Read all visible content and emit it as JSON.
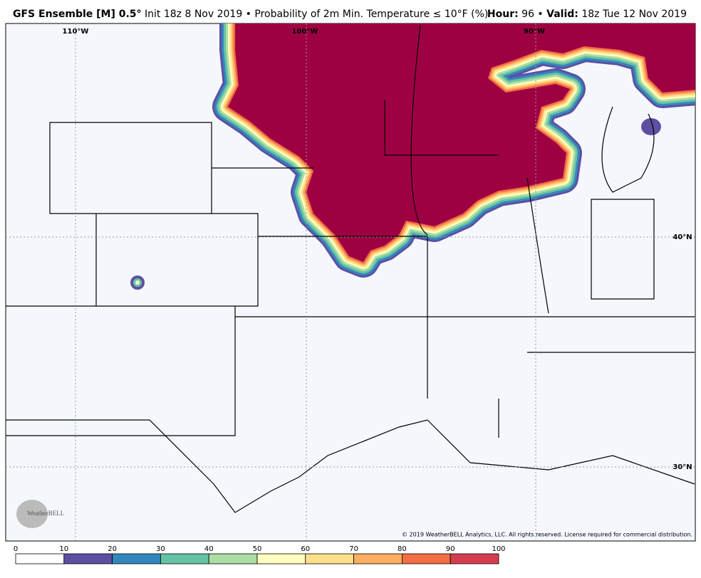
{
  "header": {
    "title_bold": "GFS Ensemble [M] 0.5°",
    "title_rest": "Init 18z 8 Nov 2019 • Probability of 2m Min. Temperature ≤ 10°F (%)",
    "hour_label": "Hour:",
    "hour": "96",
    "valid_label": "Valid:",
    "valid": "18z Tue 12 Nov 2019"
  },
  "map": {
    "lon_labels": [
      "110°W",
      "100°W",
      "90°W"
    ],
    "lat_labels": [
      "40°N",
      "30°N"
    ],
    "copyright": "© 2019 WeatherBELL Analytics, LLC. All rights reserved. License required for commercial distribution.",
    "logo": "WeatherBELL"
  },
  "colorbar": {
    "ticks": [
      0,
      10,
      20,
      30,
      40,
      50,
      60,
      70,
      80,
      90,
      100
    ],
    "colors": [
      "#ffffff",
      "#5e4fa2",
      "#3288bd",
      "#66c2a5",
      "#abdda4",
      "#ffffbf",
      "#fee08b",
      "#fdae61",
      "#f46d43",
      "#d53e4f",
      "#9e0142"
    ]
  }
}
